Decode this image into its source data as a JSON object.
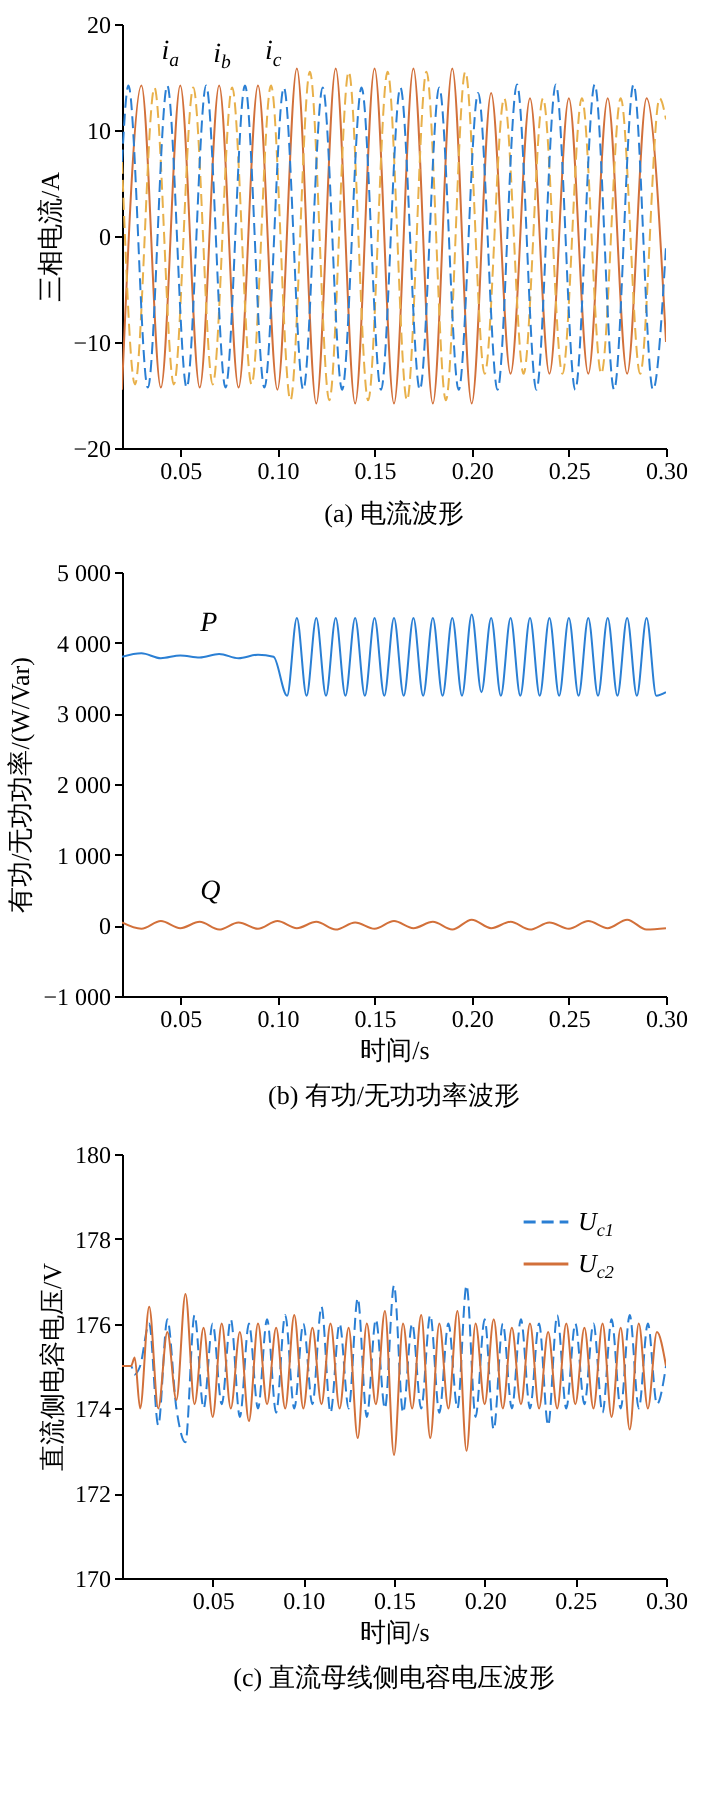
{
  "chart_data": [
    {
      "type": "line",
      "title": "(a) 电流波形",
      "ylabel": "三相电流/A",
      "xlim": [
        0.02,
        0.3
      ],
      "xticks": [
        0.05,
        {
          "value": 0.1,
          "label": "0.10"
        },
        0.15,
        {
          "value": 0.2,
          "label": "0.20"
        },
        0.25,
        {
          "value": 0.3,
          "label": "0.30"
        }
      ],
      "ylim": [
        -20,
        20
      ],
      "yticks": [
        {
          "value": -20,
          "label": "−20"
        },
        {
          "value": -10,
          "label": "−10"
        },
        0,
        10,
        20
      ],
      "annotations": [
        {
          "text": "i$_{a}$",
          "x": 0.03,
          "y": 14.2
        },
        {
          "text": "i$_{b}$",
          "x": 0.0567,
          "y": 14
        },
        {
          "text": "i$_{c}$",
          "x": 0.0833,
          "y": 14.2
        }
      ],
      "series": [
        {
          "color": "#d2703a",
          "line_style": "solid",
          "x": [
            0.02,
            0.03,
            0.04,
            0.05,
            0.06,
            0.07,
            0.08,
            0.09,
            0.1,
            0.11,
            0.12,
            0.13,
            0.14,
            0.15,
            0.16,
            0.17,
            0.18,
            0.19,
            0.2,
            0.21,
            0.22,
            0.23,
            0.24,
            0.25,
            0.26,
            0.27,
            0.28,
            0.29,
            0.3
          ],
          "values": [
            -14.5,
            14.2,
            -14.3,
            14.2,
            -14.3,
            14.2,
            -14.3,
            14.2,
            -14.5,
            15.8,
            -15.8,
            15.8,
            -15.8,
            15.8,
            -15.8,
            15.8,
            -15.8,
            15.8,
            -15.8,
            13.5,
            -13,
            13,
            -13,
            13,
            -13,
            13,
            -13,
            13,
            -10
          ]
        },
        {
          "color": "#e8b04a",
          "line_style": "dashed",
          "x": [
            0.02,
            0.0267,
            0.0367,
            0.0467,
            0.0567,
            0.0667,
            0.0767,
            0.0867,
            0.0967,
            0.1067,
            0.1167,
            0.1267,
            0.1367,
            0.1467,
            0.1567,
            0.1667,
            0.1767,
            0.1867,
            0.1967,
            0.2067,
            0.2167,
            0.2267,
            0.2367,
            0.2467,
            0.2567,
            0.2667,
            0.2767,
            0.2867,
            0.2967,
            0.3
          ],
          "values": [
            7,
            -14,
            14,
            -14,
            14,
            -14,
            14,
            -14,
            14.2,
            -15.5,
            15.5,
            -15.5,
            15.5,
            -15.5,
            15.5,
            -15.5,
            15.5,
            -15.5,
            15.5,
            -13,
            13,
            -13,
            13,
            -13,
            13,
            -13,
            13,
            -13,
            13,
            11
          ]
        },
        {
          "color": "#2a7fd4",
          "line_style": "dashed",
          "x": [
            0.02,
            0.0233,
            0.0333,
            0.0433,
            0.0533,
            0.0633,
            0.0733,
            0.0833,
            0.0933,
            0.1033,
            0.1133,
            0.1233,
            0.1333,
            0.1433,
            0.1533,
            0.1633,
            0.1733,
            0.1833,
            0.1933,
            0.2033,
            0.2133,
            0.2233,
            0.2333,
            0.2433,
            0.2533,
            0.2633,
            0.2733,
            0.2833,
            0.2933,
            0.3
          ],
          "values": [
            7,
            14.2,
            -14.3,
            14.2,
            -14.3,
            14.2,
            -14.3,
            14.2,
            -14.3,
            14,
            -14.5,
            14,
            -14.5,
            14,
            -14.5,
            14,
            -14.5,
            14,
            -14.5,
            13.5,
            -14.5,
            14.3,
            -14.5,
            14.3,
            -14.5,
            14.3,
            -14.5,
            14.3,
            -14.5,
            -1
          ]
        }
      ]
    },
    {
      "type": "line",
      "title": "(b) 有功/无功功率波形",
      "xlabel": "时间/s",
      "ylabel": "有功/无功功率/(W/Var)",
      "xlim": [
        0.02,
        0.3
      ],
      "xticks": [
        0.05,
        {
          "value": 0.1,
          "label": "0.10"
        },
        0.15,
        {
          "value": 0.2,
          "label": "0.20"
        },
        0.25,
        {
          "value": 0.3,
          "label": "0.30"
        }
      ],
      "ylim": [
        -1000,
        5000
      ],
      "yticks": [
        {
          "value": -1000,
          "label": "−1 000"
        },
        0,
        {
          "value": 1000,
          "label": "1 000"
        },
        {
          "value": 2000,
          "label": "2 000"
        },
        {
          "value": 3000,
          "label": "3 000"
        },
        {
          "value": 4000,
          "label": "4 000"
        },
        {
          "value": 5000,
          "label": "5 000"
        }
      ],
      "annotations": [
        {
          "text": "P",
          "x": 0.05,
          "y": 3800
        },
        {
          "text": "Q",
          "x": 0.05,
          "y": 0
        }
      ],
      "series": [
        {
          "color": "#2a7fd4",
          "x": [
            0.02,
            0.03,
            0.04,
            0.05,
            0.06,
            0.07,
            0.08,
            0.09,
            0.098,
            0.105,
            0.11,
            0.115,
            0.12,
            0.125,
            0.13,
            0.135,
            0.14,
            0.145,
            0.15,
            0.155,
            0.16,
            0.165,
            0.17,
            0.175,
            0.18,
            0.185,
            0.19,
            0.195,
            0.2,
            0.205,
            0.21,
            0.215,
            0.22,
            0.225,
            0.23,
            0.235,
            0.24,
            0.245,
            0.25,
            0.255,
            0.26,
            0.265,
            0.27,
            0.275,
            0.28,
            0.285,
            0.29,
            0.295,
            0.3
          ],
          "values": [
            3800,
            3850,
            3780,
            3820,
            3790,
            3840,
            3780,
            3830,
            3800,
            3250,
            4350,
            3250,
            4350,
            3250,
            4350,
            3250,
            4350,
            3250,
            4350,
            3250,
            4350,
            3250,
            4350,
            3250,
            4350,
            3250,
            4350,
            3250,
            4400,
            3300,
            4350,
            3250,
            4350,
            3250,
            4350,
            3250,
            4350,
            3250,
            4350,
            3250,
            4350,
            3250,
            4350,
            3250,
            4350,
            3250,
            4350,
            3250,
            3300
          ]
        },
        {
          "color": "#d2703a",
          "x": [
            0.02,
            0.03,
            0.04,
            0.05,
            0.06,
            0.07,
            0.08,
            0.09,
            0.1,
            0.11,
            0.12,
            0.13,
            0.14,
            0.15,
            0.16,
            0.17,
            0.18,
            0.19,
            0.2,
            0.21,
            0.22,
            0.23,
            0.24,
            0.25,
            0.26,
            0.27,
            0.28,
            0.29,
            0.3
          ],
          "values": [
            40,
            -50,
            60,
            -40,
            50,
            -60,
            40,
            -50,
            60,
            -40,
            50,
            -60,
            40,
            -50,
            60,
            -40,
            50,
            -60,
            80,
            -40,
            50,
            -60,
            40,
            -50,
            60,
            -40,
            80,
            -60,
            -40
          ]
        }
      ]
    },
    {
      "type": "line",
      "title": "(c) 直流母线侧电容电压波形",
      "xlabel": "时间/s",
      "ylabel": "直流侧电容电压/V",
      "xlim": [
        0,
        0.3
      ],
      "xticks": [
        0.05,
        {
          "value": 0.1,
          "label": "0.10"
        },
        0.15,
        {
          "value": 0.2,
          "label": "0.20"
        },
        0.25,
        {
          "value": 0.3,
          "label": "0.30"
        }
      ],
      "ylim": [
        170,
        180
      ],
      "yticks": [
        170,
        172,
        174,
        176,
        178,
        180
      ],
      "legend": "top right",
      "x": [
        0,
        0.005,
        0.007,
        0.01,
        0.015,
        0.02,
        0.025,
        0.03,
        0.035,
        0.04,
        0.045,
        0.05,
        0.055,
        0.06,
        0.065,
        0.07,
        0.075,
        0.08,
        0.085,
        0.09,
        0.095,
        0.1,
        0.105,
        0.11,
        0.115,
        0.12,
        0.125,
        0.13,
        0.135,
        0.14,
        0.145,
        0.15,
        0.155,
        0.16,
        0.165,
        0.17,
        0.175,
        0.18,
        0.185,
        0.19,
        0.195,
        0.2,
        0.205,
        0.21,
        0.215,
        0.22,
        0.225,
        0.23,
        0.235,
        0.24,
        0.245,
        0.25,
        0.255,
        0.26,
        0.265,
        0.27,
        0.275,
        0.28,
        0.285,
        0.29,
        0.295,
        0.3
      ],
      "series": [
        {
          "name": "U$_{c1}$",
          "color": "#2a7fd4",
          "line_style": "dashed",
          "values": [
            175,
            175,
            174.8,
            175,
            176.0,
            173.6,
            176.1,
            174.0,
            173.2,
            176.2,
            174.0,
            176.0,
            174.1,
            176.1,
            173.8,
            176.0,
            174.0,
            176.1,
            173.9,
            176.2,
            174.0,
            176.0,
            174.1,
            176.4,
            173.9,
            176.0,
            174.0,
            176.6,
            173.8,
            176.1,
            174.0,
            176.9,
            173.9,
            176.0,
            174.0,
            176.2,
            173.9,
            176.0,
            174.0,
            176.9,
            173.8,
            176.1,
            173.5,
            176.0,
            174.0,
            176.1,
            174.0,
            176.0,
            173.6,
            176.2,
            174.0,
            176.0,
            174.1,
            176.0,
            173.9,
            176.1,
            174.0,
            176.2,
            174.0,
            176.0,
            174.1,
            175.0
          ]
        },
        {
          "name": "U$_{c2}$",
          "color": "#d2703a",
          "line_style": "solid",
          "values": [
            175,
            175,
            175.2,
            174.0,
            176.4,
            174.0,
            175.8,
            174.2,
            176.7,
            174.1,
            175.9,
            173.8,
            176.0,
            174.0,
            175.8,
            173.7,
            176.0,
            174.1,
            175.9,
            174.0,
            176.2,
            174.0,
            175.9,
            174.1,
            176.0,
            174.0,
            175.9,
            173.3,
            176.0,
            174.1,
            176.3,
            172.9,
            176.0,
            174.0,
            176.2,
            173.3,
            176.0,
            174.0,
            176.3,
            173.0,
            176.0,
            174.1,
            176.1,
            174.0,
            175.9,
            174.1,
            176.0,
            174.0,
            175.8,
            174.0,
            176.0,
            174.1,
            175.9,
            174.0,
            176.0,
            173.8,
            175.9,
            173.5,
            176.0,
            174.0,
            175.8,
            175.0
          ]
        }
      ]
    }
  ]
}
